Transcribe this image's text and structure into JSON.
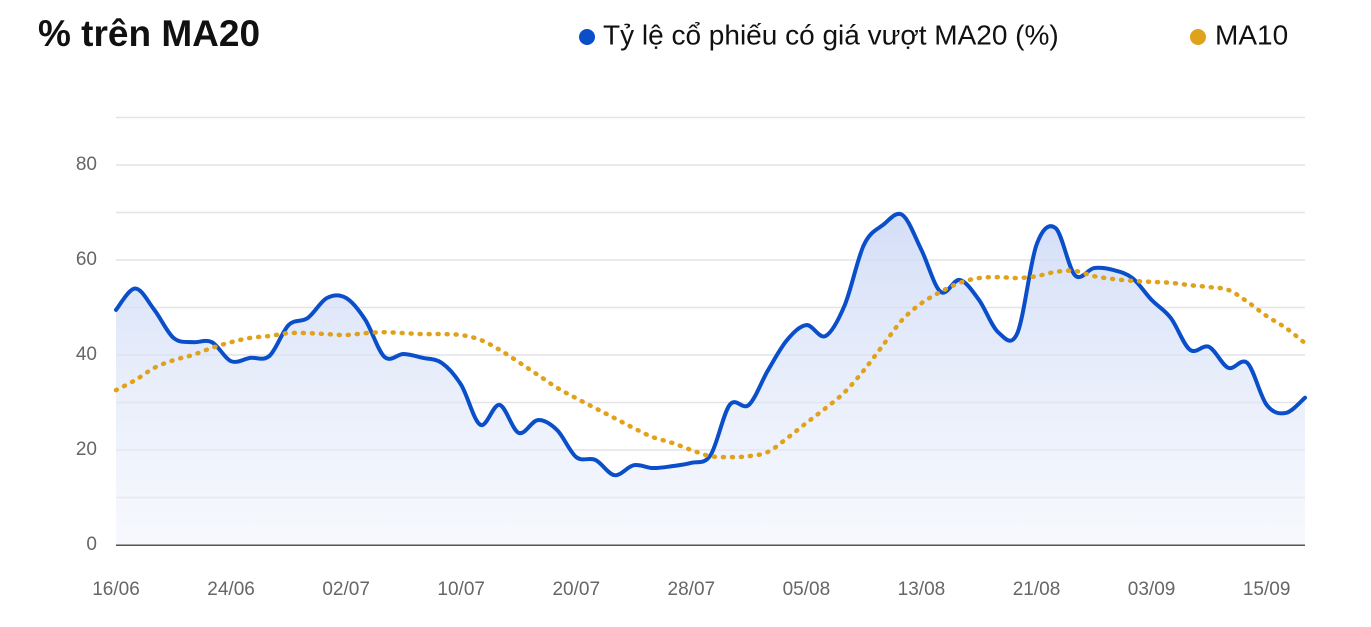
{
  "chart_data": {
    "type": "line",
    "title": "% trên MA20",
    "categories": [
      "16/06",
      null,
      null,
      null,
      null,
      null,
      "24/06",
      null,
      null,
      null,
      null,
      null,
      "02/07",
      null,
      null,
      null,
      null,
      null,
      "10/07",
      null,
      null,
      null,
      null,
      null,
      "20/07",
      null,
      null,
      null,
      null,
      null,
      "28/07",
      null,
      null,
      null,
      null,
      null,
      "05/08",
      null,
      null,
      null,
      null,
      null,
      "13/08",
      null,
      null,
      null,
      null,
      null,
      "21/08",
      null,
      null,
      null,
      null,
      null,
      "03/09",
      null,
      null,
      null,
      null,
      null,
      "15/09",
      null,
      null
    ],
    "series": [
      {
        "name": "Tỷ lệ cổ phiếu có giá vượt MA20 (%)",
        "color": "#0a4fc9",
        "area": true,
        "values": [
          49.5,
          54,
          49.5,
          43.6,
          42.7,
          42.7,
          38.7,
          39.4,
          39.8,
          46.3,
          47.8,
          52,
          52,
          47.4,
          39.6,
          40.2,
          39.4,
          38.3,
          33.7,
          25.3,
          29.5,
          23.6,
          26.3,
          24.2,
          18.5,
          17.9,
          14.7,
          16.8,
          16.2,
          16.6,
          17.3,
          18.9,
          29.5,
          29.5,
          36.8,
          43.2,
          46.3,
          44,
          50.5,
          63.2,
          67.4,
          69.5,
          62.1,
          53.3,
          55.8,
          51.6,
          44.8,
          44.6,
          63.2,
          66.7,
          56.8,
          58.3,
          57.9,
          56.2,
          51.6,
          47.8,
          41.1,
          41.7,
          37.3,
          38.3,
          29.5,
          27.8,
          31
        ]
      },
      {
        "name": "MA10",
        "color": "#e0a21b",
        "dotted": true,
        "values": [
          32.6,
          34.7,
          37.3,
          38.9,
          40,
          41.5,
          42.7,
          43.6,
          44,
          44.6,
          44.6,
          44.4,
          44.2,
          44.6,
          44.8,
          44.6,
          44.4,
          44.4,
          44.2,
          43.2,
          41.1,
          38.5,
          35.8,
          33.1,
          30.9,
          28.8,
          26.7,
          24.6,
          22.7,
          21.5,
          20,
          18.7,
          18.5,
          18.7,
          19.6,
          22.5,
          25.7,
          28.8,
          32.2,
          36.8,
          42.1,
          47.4,
          50.9,
          53.3,
          55.2,
          56.2,
          56.4,
          56.2,
          56.6,
          57.5,
          57.7,
          56.6,
          56,
          55.6,
          55.4,
          55.2,
          54.7,
          54.3,
          53.7,
          51.2,
          48.2,
          45.7,
          42.5
        ]
      }
    ],
    "ylim": [
      0,
      90
    ],
    "yticks": [
      0,
      20,
      40,
      60,
      80
    ],
    "y_gridlines": [
      10,
      30,
      50,
      70,
      90
    ],
    "grid": true
  }
}
